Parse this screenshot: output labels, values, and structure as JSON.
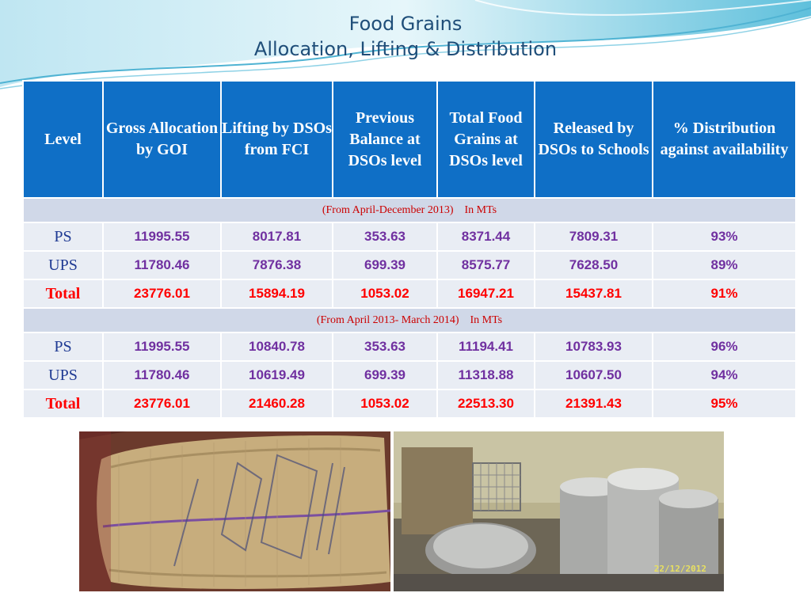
{
  "title": {
    "line1": "Food Grains",
    "line2": "Allocation, Lifting & Distribution"
  },
  "table": {
    "headers": [
      "Level",
      "Gross Allocation by GOI",
      "Lifting by DSOs from FCI",
      "Previous Balance at DSOs level",
      "Total Food Grains at DSOs level",
      "Released by DSOs to Schools",
      "% Distribution against availability"
    ],
    "section1": {
      "note": "(From April-December 2013)    In MTs",
      "rows": [
        [
          "PS",
          "11995.55",
          "8017.81",
          "353.63",
          "8371.44",
          "7809.31",
          "93%"
        ],
        [
          "UPS",
          "11780.46",
          "7876.38",
          "699.39",
          "8575.77",
          "7628.50",
          "89%"
        ],
        [
          "Total",
          "23776.01",
          "15894.19",
          "1053.02",
          "16947.21",
          "15437.81",
          "91%"
        ]
      ]
    },
    "section2": {
      "note": "(From April 2013- March 2014)    In MTs",
      "rows": [
        [
          "PS",
          "11995.55",
          "10840.78",
          "353.63",
          "11194.41",
          "10783.93",
          "96%"
        ],
        [
          "UPS",
          "11780.46",
          "10619.49",
          "699.39",
          "11318.88",
          "10607.50",
          "94%"
        ],
        [
          "Total",
          "23776.01",
          "21460.28",
          "1053.02",
          "22513.30",
          "21391.43",
          "95%"
        ]
      ]
    }
  },
  "photos": {
    "left_photo": "grain-sack-photo",
    "right_photo": "storage-containers-photo",
    "date_stamp": "22/12/2012"
  },
  "colors": {
    "header_bg": "#0f6fc6",
    "row_bg": "#e9edf4",
    "note_bg": "#d0d8e8",
    "value_text": "#7030a0",
    "total_text": "#ff0000",
    "title_text": "#1f4e79"
  }
}
